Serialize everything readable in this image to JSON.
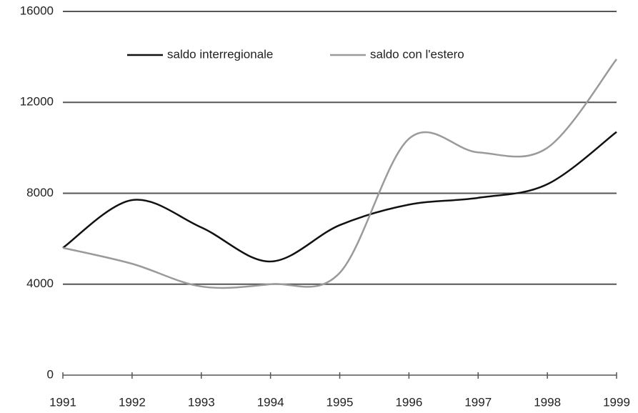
{
  "chart_data": {
    "type": "line",
    "x": [
      1991,
      1992,
      1993,
      1994,
      1995,
      1996,
      1997,
      1998,
      1999
    ],
    "xlim": [
      1991,
      1999
    ],
    "xticks": [
      1991,
      1992,
      1993,
      1994,
      1995,
      1996,
      1997,
      1998,
      1999
    ],
    "ylim": [
      0,
      16000
    ],
    "yticks": [
      0,
      4000,
      8000,
      12000,
      16000
    ],
    "grid": true,
    "smooth": true,
    "legend": "top",
    "series": [
      {
        "name": "saldo interregionale",
        "color": "#111111",
        "values": [
          5600,
          7700,
          6500,
          5000,
          6600,
          7500,
          7800,
          8400,
          10700
        ]
      },
      {
        "name": "saldo con l'estero",
        "color": "#9a9a9a",
        "values": [
          5600,
          4900,
          3900,
          4000,
          4500,
          10400,
          9800,
          10000,
          13900
        ]
      }
    ]
  }
}
